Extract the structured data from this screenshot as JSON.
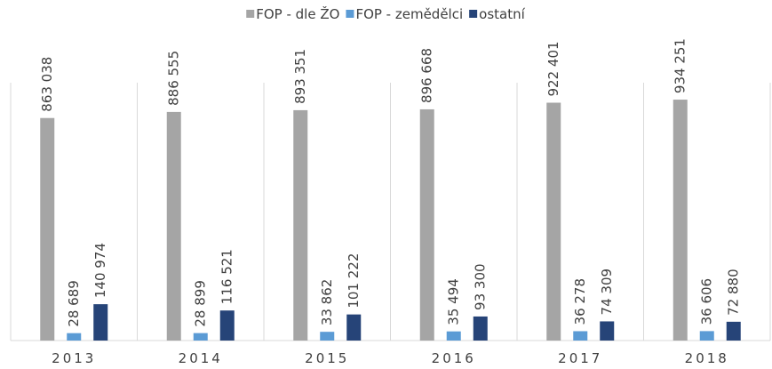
{
  "chart_data": {
    "type": "bar",
    "categories": [
      "2013",
      "2014",
      "2015",
      "2016",
      "2017",
      "2018"
    ],
    "series": [
      {
        "name": "FOP - dle ŽO",
        "color": "#a5a5a5",
        "values": [
          863038,
          886555,
          893351,
          896668,
          922401,
          934251
        ],
        "value_labels": [
          "863 038",
          "886 555",
          "893 351",
          "896 668",
          "922 401",
          "934 251"
        ]
      },
      {
        "name": "FOP - zemědělci",
        "color": "#5b9bd5",
        "values": [
          28689,
          28899,
          33862,
          35494,
          36278,
          36606
        ],
        "value_labels": [
          "28 689",
          "28 899",
          "33 862",
          "35 494",
          "36 278",
          "36 606"
        ]
      },
      {
        "name": "ostatní",
        "color": "#264478",
        "values": [
          140974,
          116521,
          101222,
          93300,
          74309,
          72880
        ],
        "value_labels": [
          "140 974",
          "116 521",
          "101 222",
          "93 300",
          "74 309",
          "72 880"
        ]
      }
    ],
    "ylim": [
      0,
      1000000
    ],
    "legend": "top"
  }
}
